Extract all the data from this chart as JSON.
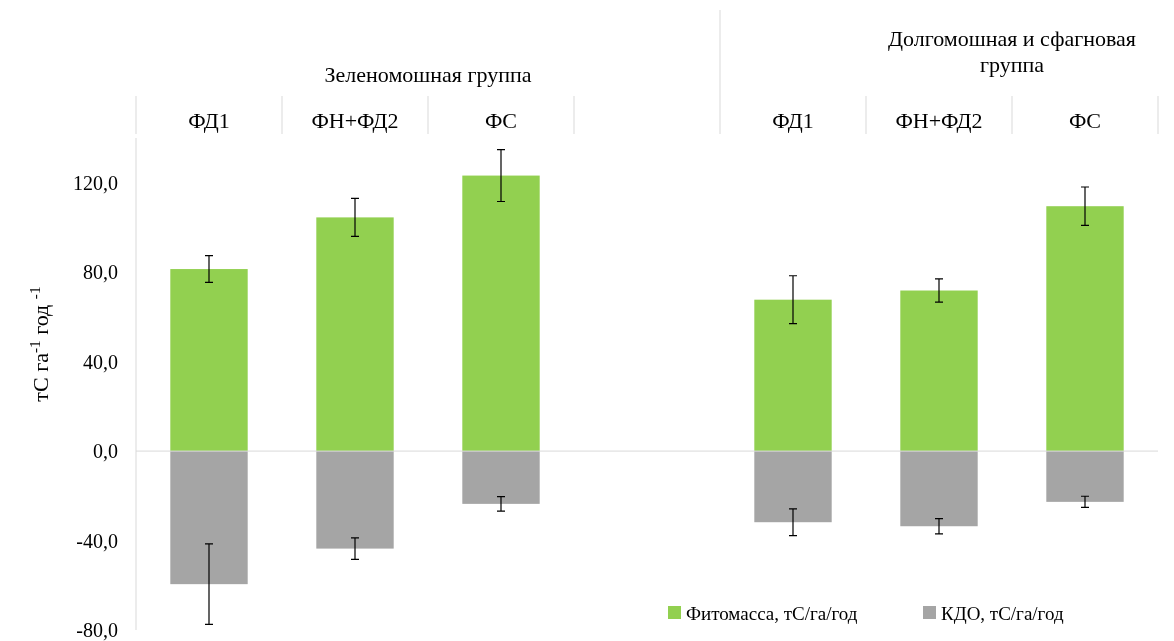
{
  "chart_data": {
    "type": "bar",
    "stacked": true,
    "ylabel": "тС га$^{-1}$ год $^{-1}$",
    "categories": [
      "ФД1",
      "ФН+ФД2",
      "ФС",
      null,
      "ФД1",
      "ФН+ФД2",
      "ФС"
    ],
    "annotations": [
      "Зеленомошная группа",
      "Долгомошная и сфагновая группа"
    ],
    "series": [
      {
        "name": "Фитомасса, тС/га/год",
        "color": "#92d050",
        "values": [
          81.4,
          104.5,
          123.2,
          null,
          67.7,
          71.8,
          109.5
        ],
        "errors": [
          6,
          8.5,
          11.6,
          null,
          10.7,
          5.2,
          8.6
        ]
      },
      {
        "name": "КДО, тС/га/год",
        "color": "#a5a5a5",
        "values": [
          -59.5,
          -43.6,
          -23.6,
          null,
          -31.8,
          -33.6,
          -22.7
        ],
        "errors": [
          18,
          4.8,
          3.2,
          null,
          6,
          3.4,
          2.5
        ]
      }
    ],
    "ylim": [
      -80,
      140
    ],
    "yticks": [
      {
        "value": -80,
        "label": "-80,0"
      },
      {
        "value": -40,
        "label": "-40,0"
      },
      {
        "value": 0,
        "label": "0,0"
      },
      {
        "value": 40,
        "label": "40,0"
      },
      {
        "value": 80,
        "label": "80,0"
      },
      {
        "value": 120,
        "label": "120,0"
      }
    ],
    "legend": "bottom right"
  }
}
